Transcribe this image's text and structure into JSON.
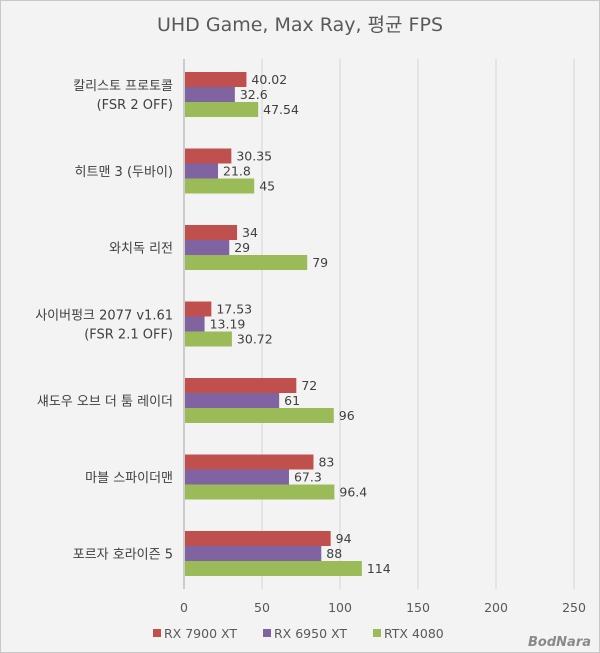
{
  "chart_data": {
    "type": "bar",
    "orientation": "horizontal",
    "title": "UHD Game, Max Ray, 평균 FPS",
    "categories": [
      [
        "칼리스토 프로토콜",
        "(FSR 2 OFF)"
      ],
      [
        "히트맨 3 (두바이)"
      ],
      [
        "와치독 리전"
      ],
      [
        "사이버펑크 2077 v1.61",
        "(FSR 2.1 OFF)"
      ],
      [
        "섀도우 오브 더 툼 레이더"
      ],
      [
        "마블 스파이더맨"
      ],
      [
        "포르자 호라이즌 5"
      ]
    ],
    "series": [
      {
        "name": "RX 7900 XT",
        "color": "#c0504d",
        "values": [
          40.02,
          30.35,
          34,
          17.53,
          72,
          83,
          94
        ]
      },
      {
        "name": "RX 6950 XT",
        "color": "#8064a2",
        "values": [
          32.6,
          21.8,
          29,
          13.19,
          61,
          67.3,
          88
        ]
      },
      {
        "name": "RTX 4080",
        "color": "#9bbb59",
        "values": [
          47.54,
          45,
          79,
          30.72,
          96,
          96.4,
          114
        ]
      }
    ],
    "value_labels": [
      [
        "40.02",
        "30.35",
        "34",
        "17.53",
        "72",
        "83",
        "94"
      ],
      [
        "32.6",
        "21.8",
        "29",
        "13.19",
        "61",
        "67.3",
        "88"
      ],
      [
        "47.54",
        "45",
        "79",
        "30.72",
        "96",
        "96.4",
        "114"
      ]
    ],
    "xlim": [
      0,
      250
    ],
    "xticks": [
      "0",
      "50",
      "100",
      "150",
      "200",
      "250"
    ],
    "grid": true,
    "legend_position": "bottom"
  },
  "watermark": "BodNara"
}
